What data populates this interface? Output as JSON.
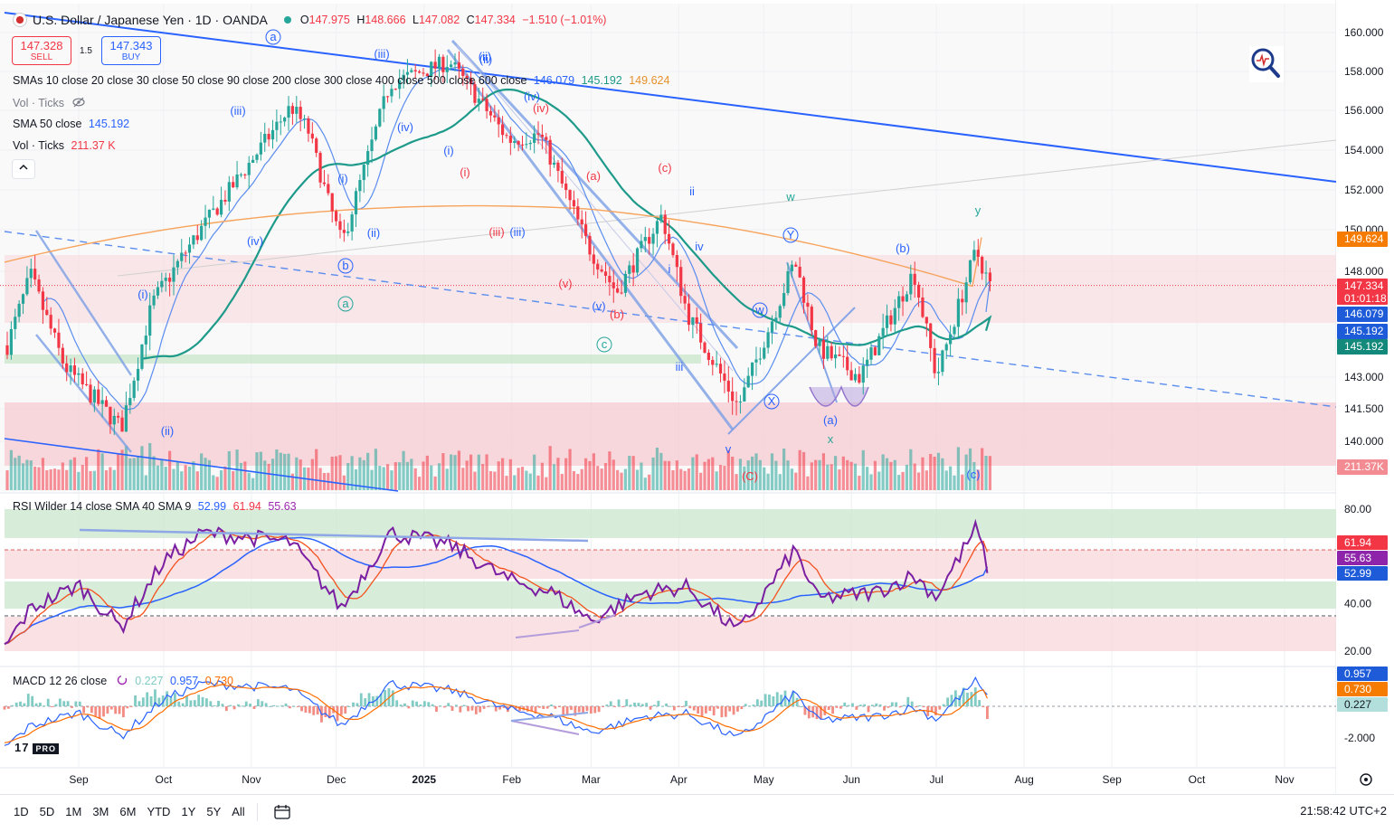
{
  "header": {
    "title": "U.S. Dollar / Japanese Yen · 1D · OANDA",
    "o_label": "O",
    "o": "147.975",
    "h_label": "H",
    "h": "148.666",
    "l_label": "L",
    "l": "147.082",
    "c_label": "C",
    "c": "147.334",
    "change": "−1.510 (−1.01%)"
  },
  "trade": {
    "sell_price": "147.328",
    "sell_label": "SELL",
    "spread": "1.5",
    "buy_price": "147.343",
    "buy_label": "BUY"
  },
  "legends": {
    "smas_label": "SMAs 10 close 20 close 30 close 50 close 90 close 200 close 300 close 400 close 500 close 600 close",
    "smas_v1": "146.079",
    "smas_v2": "145.192",
    "smas_v3": "149.624",
    "vol1_label": "Vol · Ticks",
    "sma50_label": "SMA 50 close",
    "sma50_value": "145.192",
    "vol2_label": "Vol · Ticks",
    "vol2_value": "211.37 K",
    "rsi_label": "RSI Wilder 14 close SMA 40 SMA 9",
    "rsi_v1": "52.99",
    "rsi_v2": "61.94",
    "rsi_v3": "55.63",
    "macd_label": "MACD 12 26 close",
    "macd_v1": "0.227",
    "macd_v2": "0.957",
    "macd_v3": "0.730"
  },
  "badges": {
    "sma_long": "149.624",
    "last_price": "147.334",
    "countdown": "01:01:18",
    "sma_fast": "146.079",
    "sma50_a": "145.192",
    "sma50_b": "145.192",
    "volume": "211.37K",
    "rsi_1": "61.94",
    "rsi_2": "55.63",
    "rsi_3": "52.99",
    "macd_1": "0.957",
    "macd_2": "0.730",
    "macd_3": "0.227"
  },
  "bottom_bar": {
    "ranges": [
      "1D",
      "5D",
      "1M",
      "3M",
      "6M",
      "YTD",
      "1Y",
      "5Y",
      "All"
    ],
    "clock": "21:58:42 UTC+2"
  },
  "logo": {
    "text": "17",
    "pro": "PRO"
  },
  "colors": {
    "up": "#26a69a",
    "down": "#f23645",
    "accent": "#2962ff",
    "sma_long": "#f7a35c",
    "sma50": "#1d9a8a",
    "rsi": "#7b1fa2"
  },
  "icons": [
    "flag-icon",
    "eye-off-icon",
    "chevron-up-icon",
    "zoom-icon",
    "refresh-icon",
    "calendar-icon",
    "settings-icon"
  ],
  "chart_data": [
    {
      "type": "candlestick",
      "title": "U.S. Dollar / Japanese Yen · 1D · OANDA",
      "ylim": [
        138.6,
        161.0
      ],
      "y_ticks": [
        "160.000",
        "158.000",
        "156.000",
        "154.000",
        "152.000",
        "150.000",
        "148.000",
        "143.000",
        "141.500",
        "140.000"
      ],
      "y_tick_values": [
        160.0,
        158.0,
        156.0,
        154.0,
        152.0,
        150.0,
        148.0,
        143.0,
        141.5,
        140.0
      ],
      "x_ticks": [
        "Sep",
        "Oct",
        "Nov",
        "Dec",
        "2025",
        "Feb",
        "Mar",
        "Apr",
        "May",
        "Jun",
        "Jul",
        "Aug",
        "Sep",
        "Oct",
        "Nov"
      ],
      "x_tick_dates": [
        "2024-09-01",
        "2024-10-01",
        "2024-11-01",
        "2024-12-01",
        "2025-01-01",
        "2025-02-01",
        "2025-03-01",
        "2025-04-01",
        "2025-05-01",
        "2025-06-01",
        "2025-07-01",
        "2025-08-01",
        "2025-09-01",
        "2025-10-01",
        "2025-11-01"
      ],
      "price_path": [
        [
          "2024-08-05",
          143.8
        ],
        [
          "2024-08-15",
          147.8
        ],
        [
          "2024-08-27",
          143.5
        ],
        [
          "2024-09-16",
          140.6
        ],
        [
          "2024-09-27",
          146.5
        ],
        [
          "2024-10-10",
          149.2
        ],
        [
          "2024-11-15",
          156.2
        ],
        [
          "2024-11-21",
          155.0
        ],
        [
          "2024-11-28",
          151.5
        ],
        [
          "2024-12-03",
          149.3
        ],
        [
          "2024-12-20",
          157.4
        ],
        [
          "2025-01-10",
          158.5
        ],
        [
          "2025-01-31",
          154.5
        ],
        [
          "2025-02-11",
          154.8
        ],
        [
          "2025-02-28",
          149.2
        ],
        [
          "2025-03-10",
          147.0
        ],
        [
          "2025-03-26",
          150.7
        ],
        [
          "2025-04-04",
          146.0
        ],
        [
          "2025-04-22",
          141.6
        ],
        [
          "2025-05-12",
          148.5
        ],
        [
          "2025-05-20",
          144.4
        ],
        [
          "2025-06-04",
          143.0
        ],
        [
          "2025-06-23",
          148.0
        ],
        [
          "2025-07-01",
          143.0
        ],
        [
          "2025-07-15",
          149.0
        ],
        [
          "2025-07-20",
          147.3
        ]
      ],
      "last_price": 147.334,
      "sma_long": 149.624,
      "sma_fast": 146.079,
      "sma50": 145.192,
      "volume_last": "211.37K",
      "wave_labels": [
        "a",
        "(iii)",
        "(ii)",
        "(iv)",
        "(iv)",
        "(iii)",
        "(i)",
        "(ii)",
        "(iv)",
        "(i)",
        "(i)",
        "(c)",
        "(a)",
        "ii",
        "w",
        "y",
        "(iii)",
        "(iii)",
        "(v)",
        "(v)",
        "(b)",
        "iv",
        "i",
        "(b)",
        "(i)",
        "(ii)",
        "b",
        "a",
        "c",
        "w",
        "Y",
        "X",
        "iii",
        "(a)",
        "x",
        "v",
        "(C)",
        "(c)"
      ]
    },
    {
      "type": "line",
      "title": "RSI Wilder 14 close SMA 40 SMA 9",
      "ylim": [
        15,
        85
      ],
      "y_ticks": [
        "80.00",
        "40.00",
        "20.00"
      ],
      "y_tick_values": [
        80,
        40,
        20
      ],
      "rsi_path": [
        [
          "2024-08-05",
          20
        ],
        [
          "2024-08-15",
          38
        ],
        [
          "2024-09-01",
          48
        ],
        [
          "2024-09-16",
          30
        ],
        [
          "2024-10-01",
          58
        ],
        [
          "2024-10-15",
          70
        ],
        [
          "2024-11-01",
          68
        ],
        [
          "2024-11-15",
          66
        ],
        [
          "2024-12-03",
          38
        ],
        [
          "2024-12-20",
          70
        ],
        [
          "2025-01-10",
          65
        ],
        [
          "2025-01-31",
          50
        ],
        [
          "2025-02-15",
          45
        ],
        [
          "2025-03-01",
          33
        ],
        [
          "2025-03-20",
          45
        ],
        [
          "2025-04-04",
          47
        ],
        [
          "2025-04-22",
          28
        ],
        [
          "2025-05-12",
          63
        ],
        [
          "2025-05-20",
          42
        ],
        [
          "2025-06-10",
          45
        ],
        [
          "2025-06-23",
          52
        ],
        [
          "2025-07-01",
          43
        ],
        [
          "2025-07-15",
          72
        ],
        [
          "2025-07-20",
          53
        ]
      ],
      "sma9_last": 61.94,
      "sma40_last": 55.63,
      "rsi_last": 52.99
    },
    {
      "type": "bar",
      "title": "MACD 12 26 close",
      "y_ticks": [
        "-2.000"
      ],
      "y_tick_values": [
        -2.0
      ],
      "histogram_last": 0.227,
      "macd_last": 0.957,
      "signal_last": 0.73
    }
  ]
}
